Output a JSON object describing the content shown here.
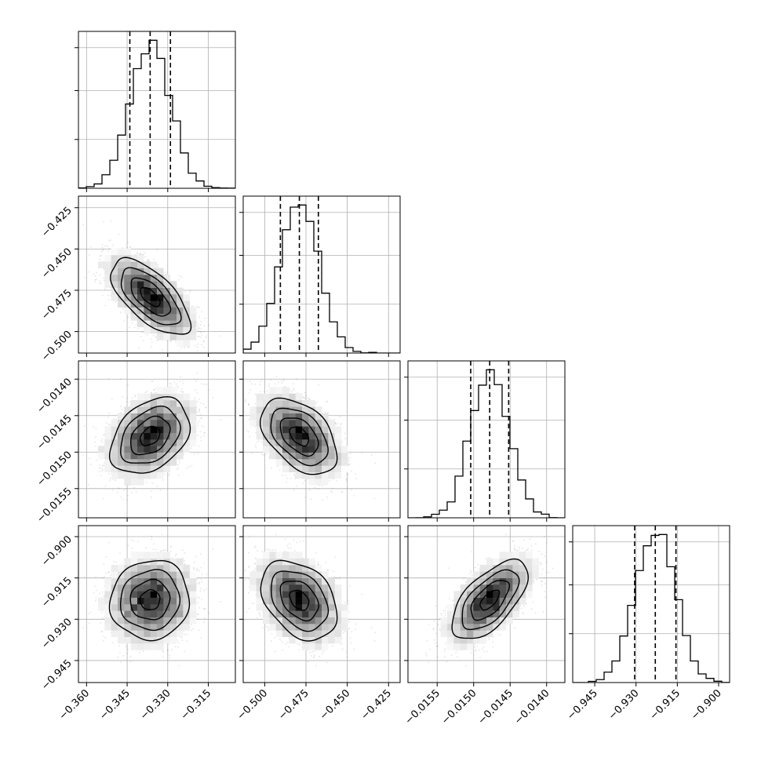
{
  "chart_data": {
    "type": "corner",
    "parameters": [
      {
        "ticks": [
          -0.36,
          -0.345,
          -0.33,
          -0.315
        ],
        "tick_labels": [
          "−0.360",
          "−0.345",
          "−0.330",
          "−0.315"
        ],
        "range": [
          -0.363,
          -0.305
        ],
        "mean": -0.3365,
        "sd": 0.0073,
        "q16": -0.344,
        "q50": -0.3365,
        "q84": -0.329
      },
      {
        "ticks": [
          -0.5,
          -0.475,
          -0.45,
          -0.425
        ],
        "tick_labels": [
          "−0.500",
          "−0.475",
          "−0.450",
          "−0.425"
        ],
        "range": [
          -0.513,
          -0.418
        ],
        "mean": -0.479,
        "sd": 0.0115,
        "q16": -0.4905,
        "q50": -0.479,
        "q84": -0.4675
      },
      {
        "ticks": [
          -0.0155,
          -0.015,
          -0.0145,
          -0.014
        ],
        "tick_labels": [
          "−0.0155",
          "−0.0150",
          "−0.0145",
          "−0.0140"
        ],
        "range": [
          -0.0159,
          -0.01375
        ],
        "mean": -0.01478,
        "sd": 0.00026,
        "q16": -0.01504,
        "q50": -0.01478,
        "q84": -0.01452
      },
      {
        "ticks": [
          -0.945,
          -0.93,
          -0.915,
          -0.9
        ],
        "tick_labels": [
          "−0.945",
          "−0.930",
          "−0.915",
          "−0.900"
        ],
        "range": [
          -0.953,
          -0.896
        ],
        "mean": -0.923,
        "sd": 0.0072,
        "q16": -0.9305,
        "q50": -0.923,
        "q84": -0.9155
      }
    ],
    "correlations": [
      [
        1.0,
        -0.65,
        0.35,
        0.05
      ],
      [
        -0.65,
        1.0,
        -0.45,
        -0.35
      ],
      [
        0.35,
        -0.45,
        1.0,
        0.62
      ],
      [
        0.05,
        -0.35,
        0.62,
        1.0
      ]
    ],
    "histogram_bins": 20,
    "quantiles": [
      0.16,
      0.5,
      0.84
    ],
    "grid": true,
    "xlabel": "",
    "ylabel": ""
  }
}
